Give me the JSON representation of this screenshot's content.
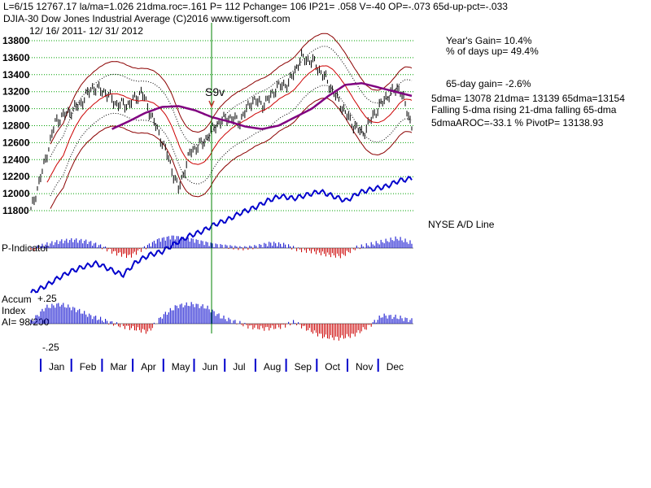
{
  "header": {
    "line1": "L=6/15  12767.17  la/ma=1.026 21dma.roc=.161 P=  112 Pchange=  106 IP21= .058 V=-40 OP=-.073 65d-up-pct=-.033",
    "line2": "DJIA-30  Dow Jones Industrial Average   (C)2016 www.tigersoft.com",
    "line3": "12/ 16/ 2011- 12/ 31/ 2012"
  },
  "stats": {
    "years_gain": "Year's Gain= 10.4%",
    "days_up": "% of days up= 49.4%",
    "gain_65": "65-day gain= -2.6%",
    "dma_values": "5dma= 13078 21dma= 13139 65dma=13154",
    "dma_trend": "Falling 5-dma rising 21-dma falling 65-dma",
    "aroc_pivot": "5dmaAROC=-33.1  %  PivotP= 13138.93"
  },
  "labels": {
    "signal": "S9v",
    "ad_line": "NYSE A/D Line",
    "p_indicator": "P-Indicator",
    "accum_1": "Accum",
    "accum_2": "Index",
    "ai": "AI= 98/200",
    "plus25": "+.25",
    "minus25": "-.25"
  },
  "colors": {
    "price_bar": "#000000",
    "band": "#8b0000",
    "ma21": "#cc0000",
    "ma65": "#800080",
    "ad_line": "#0000cc",
    "grid": "#00a000",
    "signal_line": "#008000",
    "positive": "#0000cc",
    "negative": "#cc0000"
  },
  "chart_data": {
    "type": "line",
    "title": "DJIA-30 Dow Jones Industrial Average",
    "date_range": "12/16/2011 - 12/31/2012",
    "y_ticks": [
      13800,
      13600,
      13400,
      13200,
      13000,
      12800,
      12600,
      12400,
      12200,
      12000,
      11800
    ],
    "ylim": [
      11800,
      13800
    ],
    "x_labels": [
      "Jan",
      "Feb",
      "Mar",
      "Apr",
      "May",
      "Jun",
      "Jul",
      "Aug",
      "Sep",
      "Oct",
      "Nov",
      "Dec"
    ],
    "series": [
      {
        "name": "DJIA close (approx.)",
        "values": [
          11800,
          12300,
          12850,
          12950,
          13050,
          13250,
          13200,
          13050,
          13050,
          13200,
          12850,
          12500,
          12050,
          12500,
          12600,
          12800,
          12900,
          12850,
          13100,
          13050,
          13250,
          13300,
          13600,
          13550,
          13350,
          13100,
          12850,
          12700,
          12950,
          13150,
          13250,
          12800
        ]
      },
      {
        "name": "65-dma",
        "values": [
          12760,
          12850,
          12950,
          13020,
          13030,
          12980,
          12900,
          12850,
          12790,
          12760,
          12800,
          12900,
          13000,
          13150,
          13280,
          13300,
          13250,
          13200,
          13150
        ]
      }
    ],
    "signals": [
      {
        "label": "S9v",
        "month": "Jun"
      }
    ]
  }
}
